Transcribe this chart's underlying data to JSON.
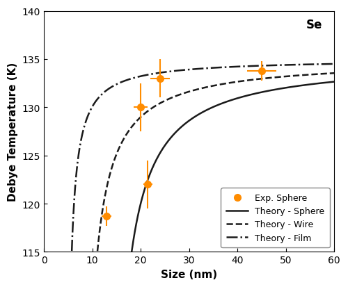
{
  "title": "Se",
  "xlabel": "Size (nm)",
  "ylabel": "Debye Temperature (K)",
  "xlim": [
    0,
    60
  ],
  "ylim": [
    115,
    140
  ],
  "xticks": [
    0,
    10,
    20,
    30,
    40,
    50,
    60
  ],
  "yticks": [
    115,
    120,
    125,
    130,
    135,
    140
  ],
  "exp_x": [
    13.0,
    20.0,
    21.5,
    24.0,
    45.0
  ],
  "exp_y": [
    118.7,
    130.0,
    122.0,
    133.0,
    133.8
  ],
  "exp_xerr": [
    1.0,
    1.5,
    1.0,
    2.0,
    3.0
  ],
  "exp_yerr": [
    1.0,
    2.5,
    2.5,
    2.0,
    1.0
  ],
  "theta_bulk": 135.0,
  "k_sphere": 2.8,
  "d0_sphere": 13.0,
  "k_wire": 2.8,
  "d0_wire": 7.3,
  "k_film": 2.8,
  "d0_film": 3.5,
  "exp_color": "#FF8C00",
  "line_color": "#1a1a1a",
  "legend_labels": [
    "Exp. Sphere",
    "Theory - Sphere",
    "Theory - Wire",
    "Theory - Film"
  ],
  "bg_color": "#ffffff"
}
